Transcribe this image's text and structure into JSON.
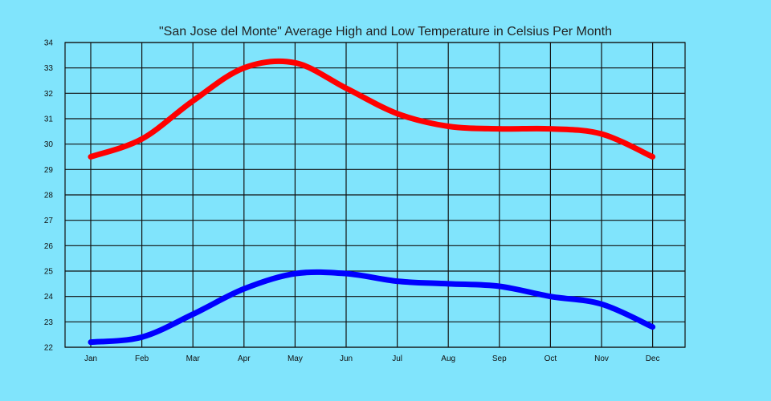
{
  "chart_data": {
    "type": "line",
    "title": "\"San Jose del Monte\" Average High and Low Temperature in Celsius Per Month",
    "xlabel": "",
    "ylabel": "",
    "categories": [
      "Jan",
      "Feb",
      "Mar",
      "Apr",
      "May",
      "Jun",
      "Jul",
      "Aug",
      "Sep",
      "Oct",
      "Nov",
      "Dec"
    ],
    "ylim": [
      22,
      34
    ],
    "yticks": [
      22,
      23,
      24,
      25,
      26,
      27,
      28,
      29,
      30,
      31,
      32,
      33,
      34
    ],
    "grid": true,
    "series": [
      {
        "name": "High",
        "color": "#ff0000",
        "values": [
          29.5,
          30.2,
          31.7,
          33.0,
          33.2,
          32.2,
          31.2,
          30.7,
          30.6,
          30.6,
          30.4,
          29.5
        ]
      },
      {
        "name": "Low",
        "color": "#0000ff",
        "values": [
          22.2,
          22.4,
          23.3,
          24.3,
          24.9,
          24.9,
          24.6,
          24.5,
          24.4,
          24.0,
          23.7,
          22.8
        ]
      }
    ]
  }
}
